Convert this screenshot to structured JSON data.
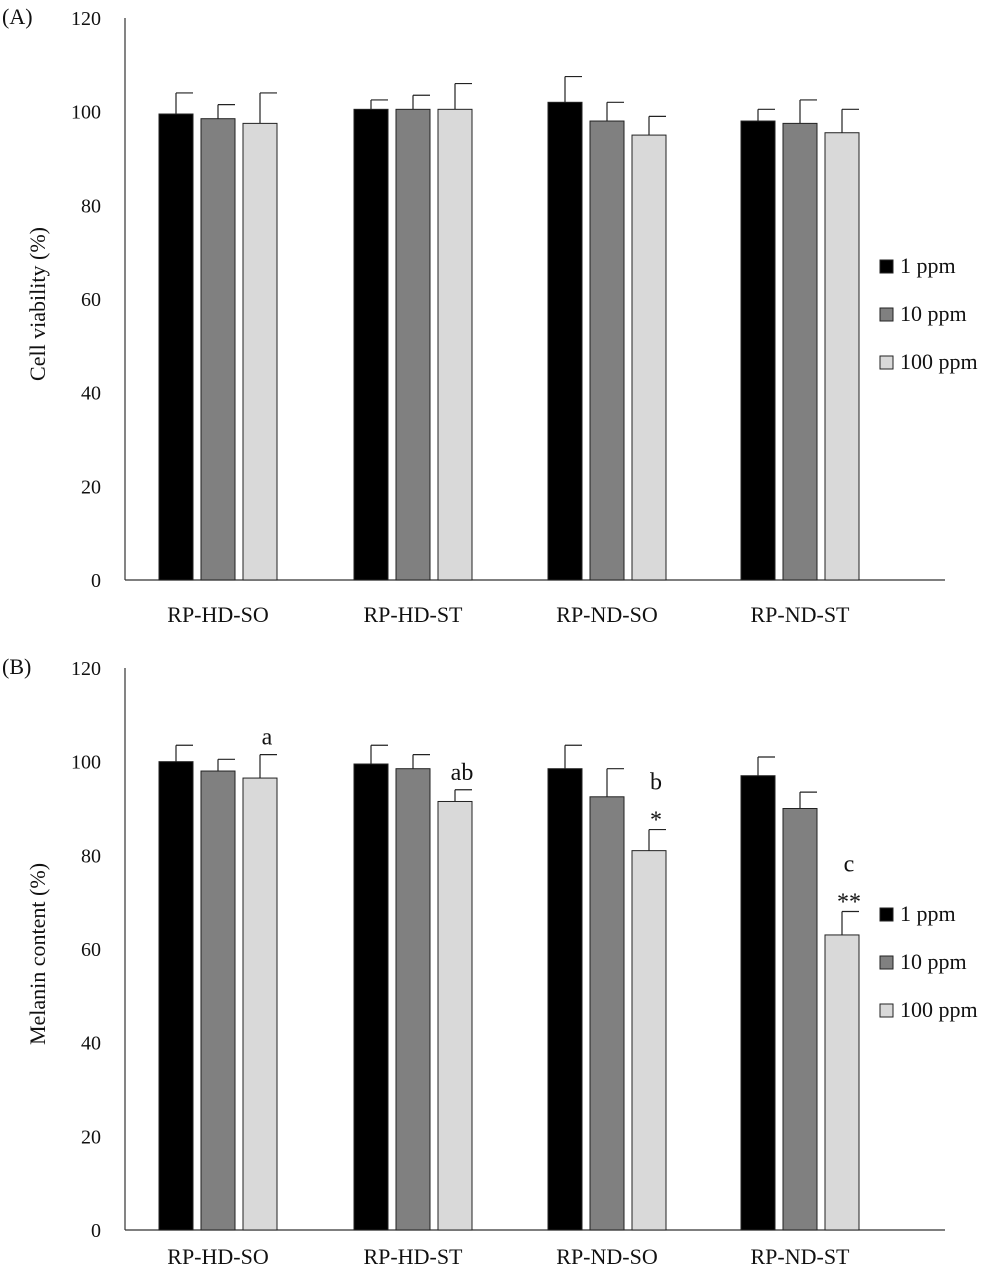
{
  "chart_data": [
    {
      "type": "bar",
      "panel_label": "(A)",
      "ylabel": "Cell  viability (%)",
      "xlabel": "",
      "ylim": [
        0,
        120
      ],
      "yticks": [
        0,
        20,
        40,
        60,
        80,
        100,
        120
      ],
      "grid": false,
      "legend_position": "right",
      "categories": [
        "RP-HD-SO",
        "RP-HD-ST",
        "RP-ND-SO",
        "RP-ND-ST"
      ],
      "series": [
        {
          "name": "1 ppm",
          "color": "#000000",
          "values": [
            99.5,
            100.5,
            102,
            98
          ],
          "errors": [
            4.5,
            2,
            5.5,
            2.5
          ],
          "annotations": [
            "",
            "",
            "",
            ""
          ]
        },
        {
          "name": "10 ppm",
          "color": "#808080",
          "values": [
            98.5,
            100.5,
            98,
            97.5
          ],
          "errors": [
            3,
            3,
            4,
            5
          ],
          "annotations": [
            "",
            "",
            "",
            ""
          ]
        },
        {
          "name": "100 ppm",
          "color": "#d9d9d9",
          "values": [
            97.5,
            100.5,
            95,
            95.5
          ],
          "errors": [
            6.5,
            5.5,
            4,
            5
          ],
          "annotations": [
            "",
            "",
            "",
            ""
          ]
        }
      ]
    },
    {
      "type": "bar",
      "panel_label": "(B)",
      "ylabel": "Melanin content (%)",
      "xlabel": "",
      "ylim": [
        0,
        120
      ],
      "yticks": [
        0,
        20,
        40,
        60,
        80,
        100,
        120
      ],
      "grid": false,
      "legend_position": "right",
      "categories": [
        "RP-HD-SO",
        "RP-HD-ST",
        "RP-ND-SO",
        "RP-ND-ST"
      ],
      "series": [
        {
          "name": "1 ppm",
          "color": "#000000",
          "values": [
            100,
            99.5,
            98.5,
            97
          ],
          "errors": [
            3.5,
            4,
            5,
            4
          ],
          "annotations": [
            "",
            "",
            "",
            ""
          ]
        },
        {
          "name": "10 ppm",
          "color": "#808080",
          "values": [
            98,
            98.5,
            92.5,
            90
          ],
          "errors": [
            2.5,
            3,
            6,
            3.5
          ],
          "annotations": [
            "",
            "",
            "",
            ""
          ]
        },
        {
          "name": "100 ppm",
          "color": "#d9d9d9",
          "values": [
            96.5,
            91.5,
            81,
            63
          ],
          "errors": [
            5,
            2.5,
            4.5,
            5
          ],
          "annotations": [
            "a",
            "ab",
            "b\n*",
            "c\n**"
          ]
        }
      ]
    }
  ]
}
